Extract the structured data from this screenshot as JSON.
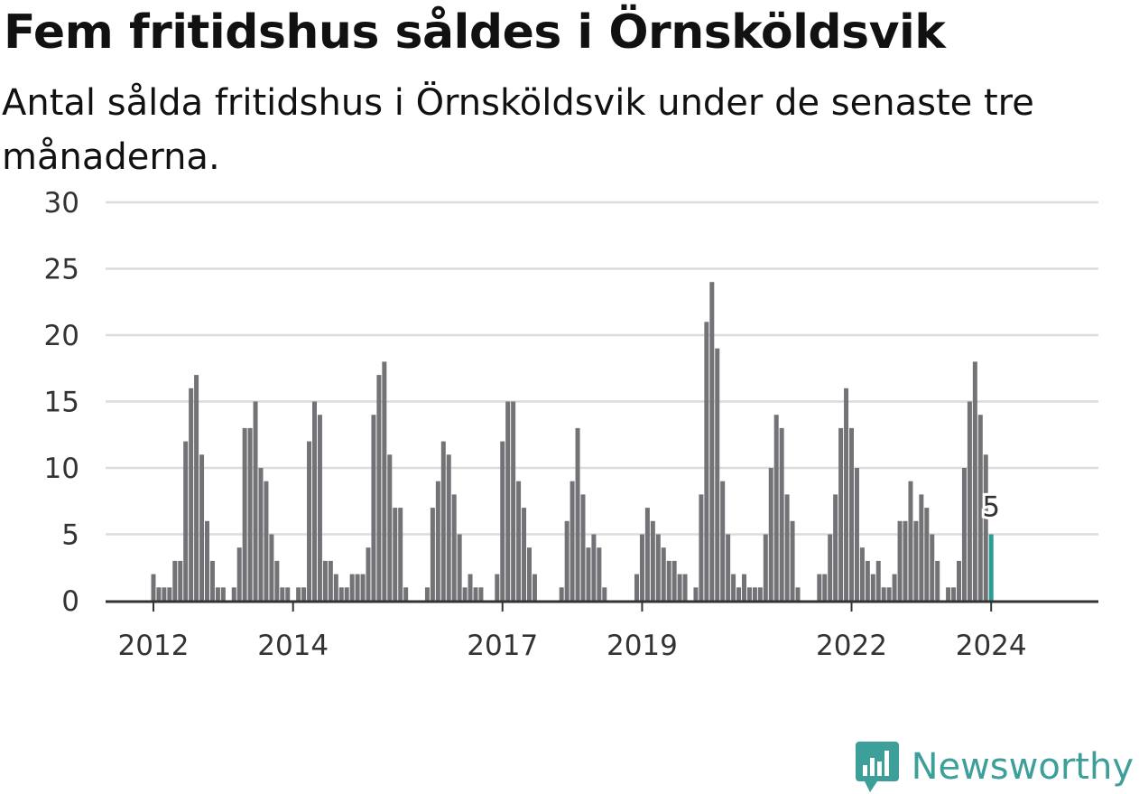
{
  "header": {
    "title": "Fem fritidshus såldes i Örnsköldsvik",
    "subtitle": "Antal sålda fritidshus i Örnsköldsvik under de senaste tre månaderna."
  },
  "branding": {
    "name": "Newsworthy",
    "icon": "newsworthy-chat-bar-icon"
  },
  "colors": {
    "bar": "#737276",
    "highlight": "#2a9d95",
    "grid": "#dcdcdc",
    "axis": "#333333",
    "brand": "#3c9f99"
  },
  "chart_data": {
    "type": "bar",
    "title": "Fem fritidshus såldes i Örnsköldsvik",
    "subtitle": "Antal sålda fritidshus i Örnsköldsvik under de senaste tre månaderna.",
    "xlabel": "",
    "ylabel": "",
    "ylim": [
      0,
      30
    ],
    "yticks": [
      0,
      5,
      10,
      15,
      20,
      25,
      30
    ],
    "xticks": [
      "2012",
      "2014",
      "2017",
      "2019",
      "2022",
      "2024"
    ],
    "grid": true,
    "legend": "none",
    "highlight_label": "5",
    "series": [
      {
        "values": [
          2,
          1,
          1,
          1,
          3,
          3,
          12,
          16,
          17,
          11,
          6,
          3,
          1,
          1,
          0,
          1,
          4,
          13,
          13,
          15,
          10,
          9,
          5,
          3,
          1,
          1,
          0,
          1,
          1,
          12,
          15,
          14,
          3,
          3,
          2,
          1,
          1,
          2,
          2,
          2,
          4,
          14,
          17,
          18,
          11,
          7,
          7,
          1,
          0,
          0,
          0,
          1,
          7,
          9,
          12,
          11,
          8,
          5,
          1,
          2,
          1,
          1,
          0,
          0,
          2,
          12,
          15,
          15,
          9,
          7,
          4,
          2,
          0,
          0,
          0,
          0,
          1,
          6,
          9,
          13,
          8,
          4,
          5,
          4,
          1,
          0,
          0,
          0,
          0,
          0,
          2,
          5,
          7,
          6,
          5,
          4,
          3,
          3,
          2,
          2,
          0,
          1,
          8,
          21,
          24,
          19,
          9,
          5,
          2,
          1,
          2,
          1,
          1,
          1,
          5,
          10,
          14,
          13,
          8,
          6,
          1,
          0,
          0,
          0,
          2,
          2,
          5,
          8,
          13,
          16,
          13,
          10,
          4,
          3,
          2,
          3,
          1,
          1,
          2,
          6,
          6,
          9,
          6,
          8,
          7,
          5,
          3,
          0,
          1,
          1,
          3,
          10,
          15,
          18,
          14,
          11,
          5
        ]
      }
    ]
  }
}
